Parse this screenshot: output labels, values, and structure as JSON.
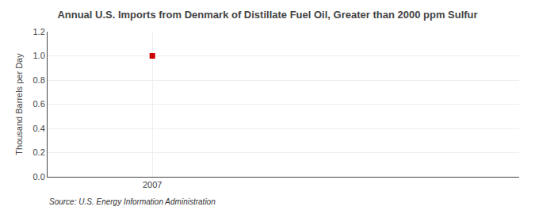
{
  "chart_data": {
    "type": "scatter",
    "title": "Annual U.S. Imports from Denmark of Distillate Fuel Oil, Greater than 2000 ppm Sulfur",
    "ylabel": "Thousand Barrels per Day",
    "source": "Source: U.S. Energy Information Administration",
    "x": [
      2007
    ],
    "values": [
      1.0
    ],
    "color": "#cc0000",
    "marker": "square",
    "xlim": [
      2006.6,
      2008.4
    ],
    "ylim": [
      0.0,
      1.2
    ],
    "xticks": [
      2007
    ],
    "yticks": [
      {
        "value": 0.0,
        "label": "0.0"
      },
      0.2,
      0.4,
      0.6,
      0.8,
      {
        "value": 1.0,
        "label": "1.0"
      },
      1.2
    ],
    "grid": true
  }
}
